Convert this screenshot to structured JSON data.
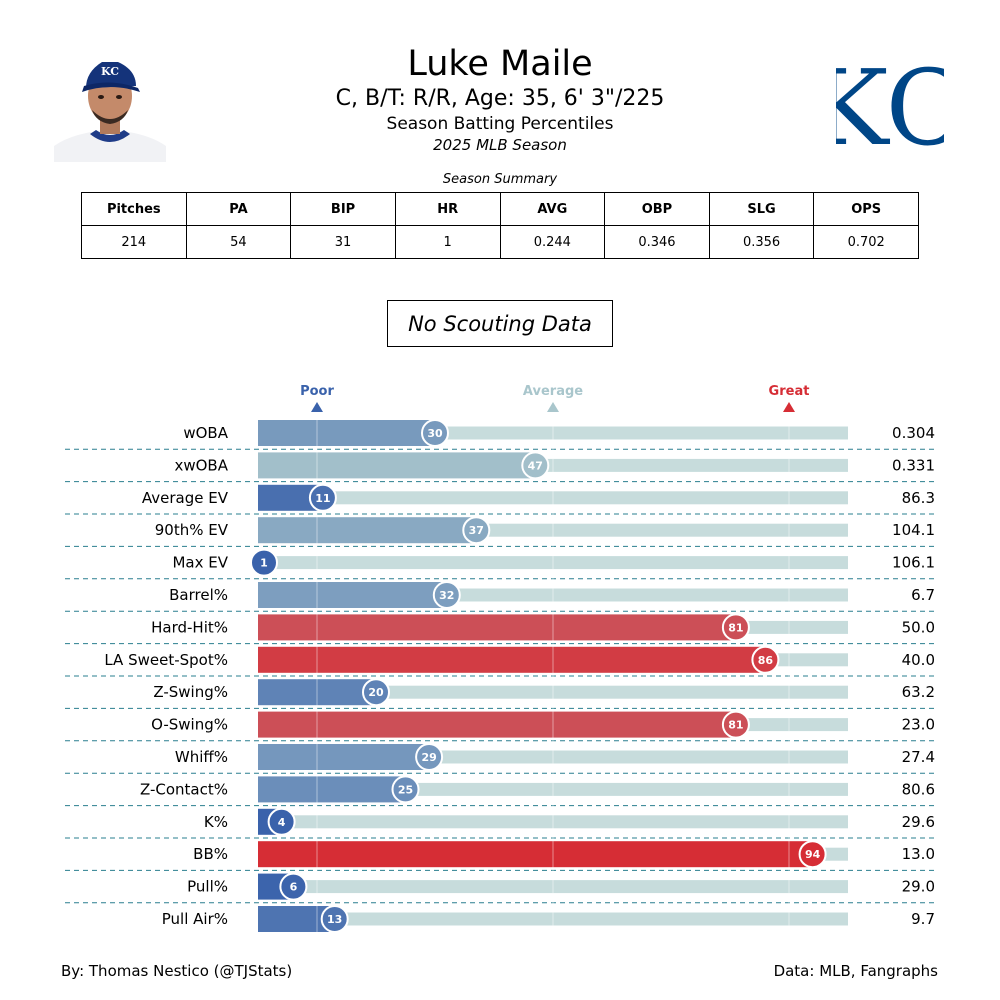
{
  "header": {
    "name": "Luke Maile",
    "info": "C, B/T: R/R, Age: 35, 6' 3\"/225",
    "subtitle": "Season Batting Percentiles",
    "season": "2025 MLB Season"
  },
  "team_logo": {
    "text": "KC",
    "color": "#004687"
  },
  "summary": {
    "caption": "Season Summary",
    "headers": [
      "Pitches",
      "PA",
      "BIP",
      "HR",
      "AVG",
      "OBP",
      "SLG",
      "OPS"
    ],
    "values": [
      "214",
      "54",
      "31",
      "1",
      "0.244",
      "0.346",
      "0.356",
      "0.702"
    ]
  },
  "scouting": {
    "text": "No Scouting Data"
  },
  "chart_data": {
    "type": "bar",
    "orientation": "horizontal",
    "xlim": [
      0,
      100
    ],
    "markers": [
      {
        "label": "Poor",
        "value": 10,
        "color": "#3a62ab"
      },
      {
        "label": "Average",
        "value": 50,
        "color": "#a9c6cc"
      },
      {
        "label": "Great",
        "value": 90,
        "color": "#d62d35"
      }
    ],
    "colors": {
      "low": "#3a62ab",
      "mid": "#a9c6cc",
      "high": "#d62d35",
      "track": "#c7dcdc",
      "divider": "#2a7f8f"
    },
    "categories": [
      "wOBA",
      "xwOBA",
      "Average EV",
      "90th% EV",
      "Max EV",
      "Barrel%",
      "Hard-Hit%",
      "LA Sweet-Spot%",
      "Z-Swing%",
      "O-Swing%",
      "Whiff%",
      "Z-Contact%",
      "K%",
      "BB%",
      "Pull%",
      "Pull Air%"
    ],
    "percentiles": [
      30,
      47,
      11,
      37,
      1,
      32,
      81,
      86,
      20,
      81,
      29,
      25,
      4,
      94,
      6,
      13
    ],
    "stat_values": [
      "0.304",
      "0.331",
      "86.3",
      "104.1",
      "106.1",
      "6.7",
      "50.0",
      "40.0",
      "63.2",
      "23.0",
      "27.4",
      "80.6",
      "29.6",
      "13.0",
      "29.0",
      "9.7"
    ]
  },
  "footer": {
    "left": "By: Thomas Nestico (@TJStats)",
    "right": "Data: MLB, Fangraphs"
  }
}
